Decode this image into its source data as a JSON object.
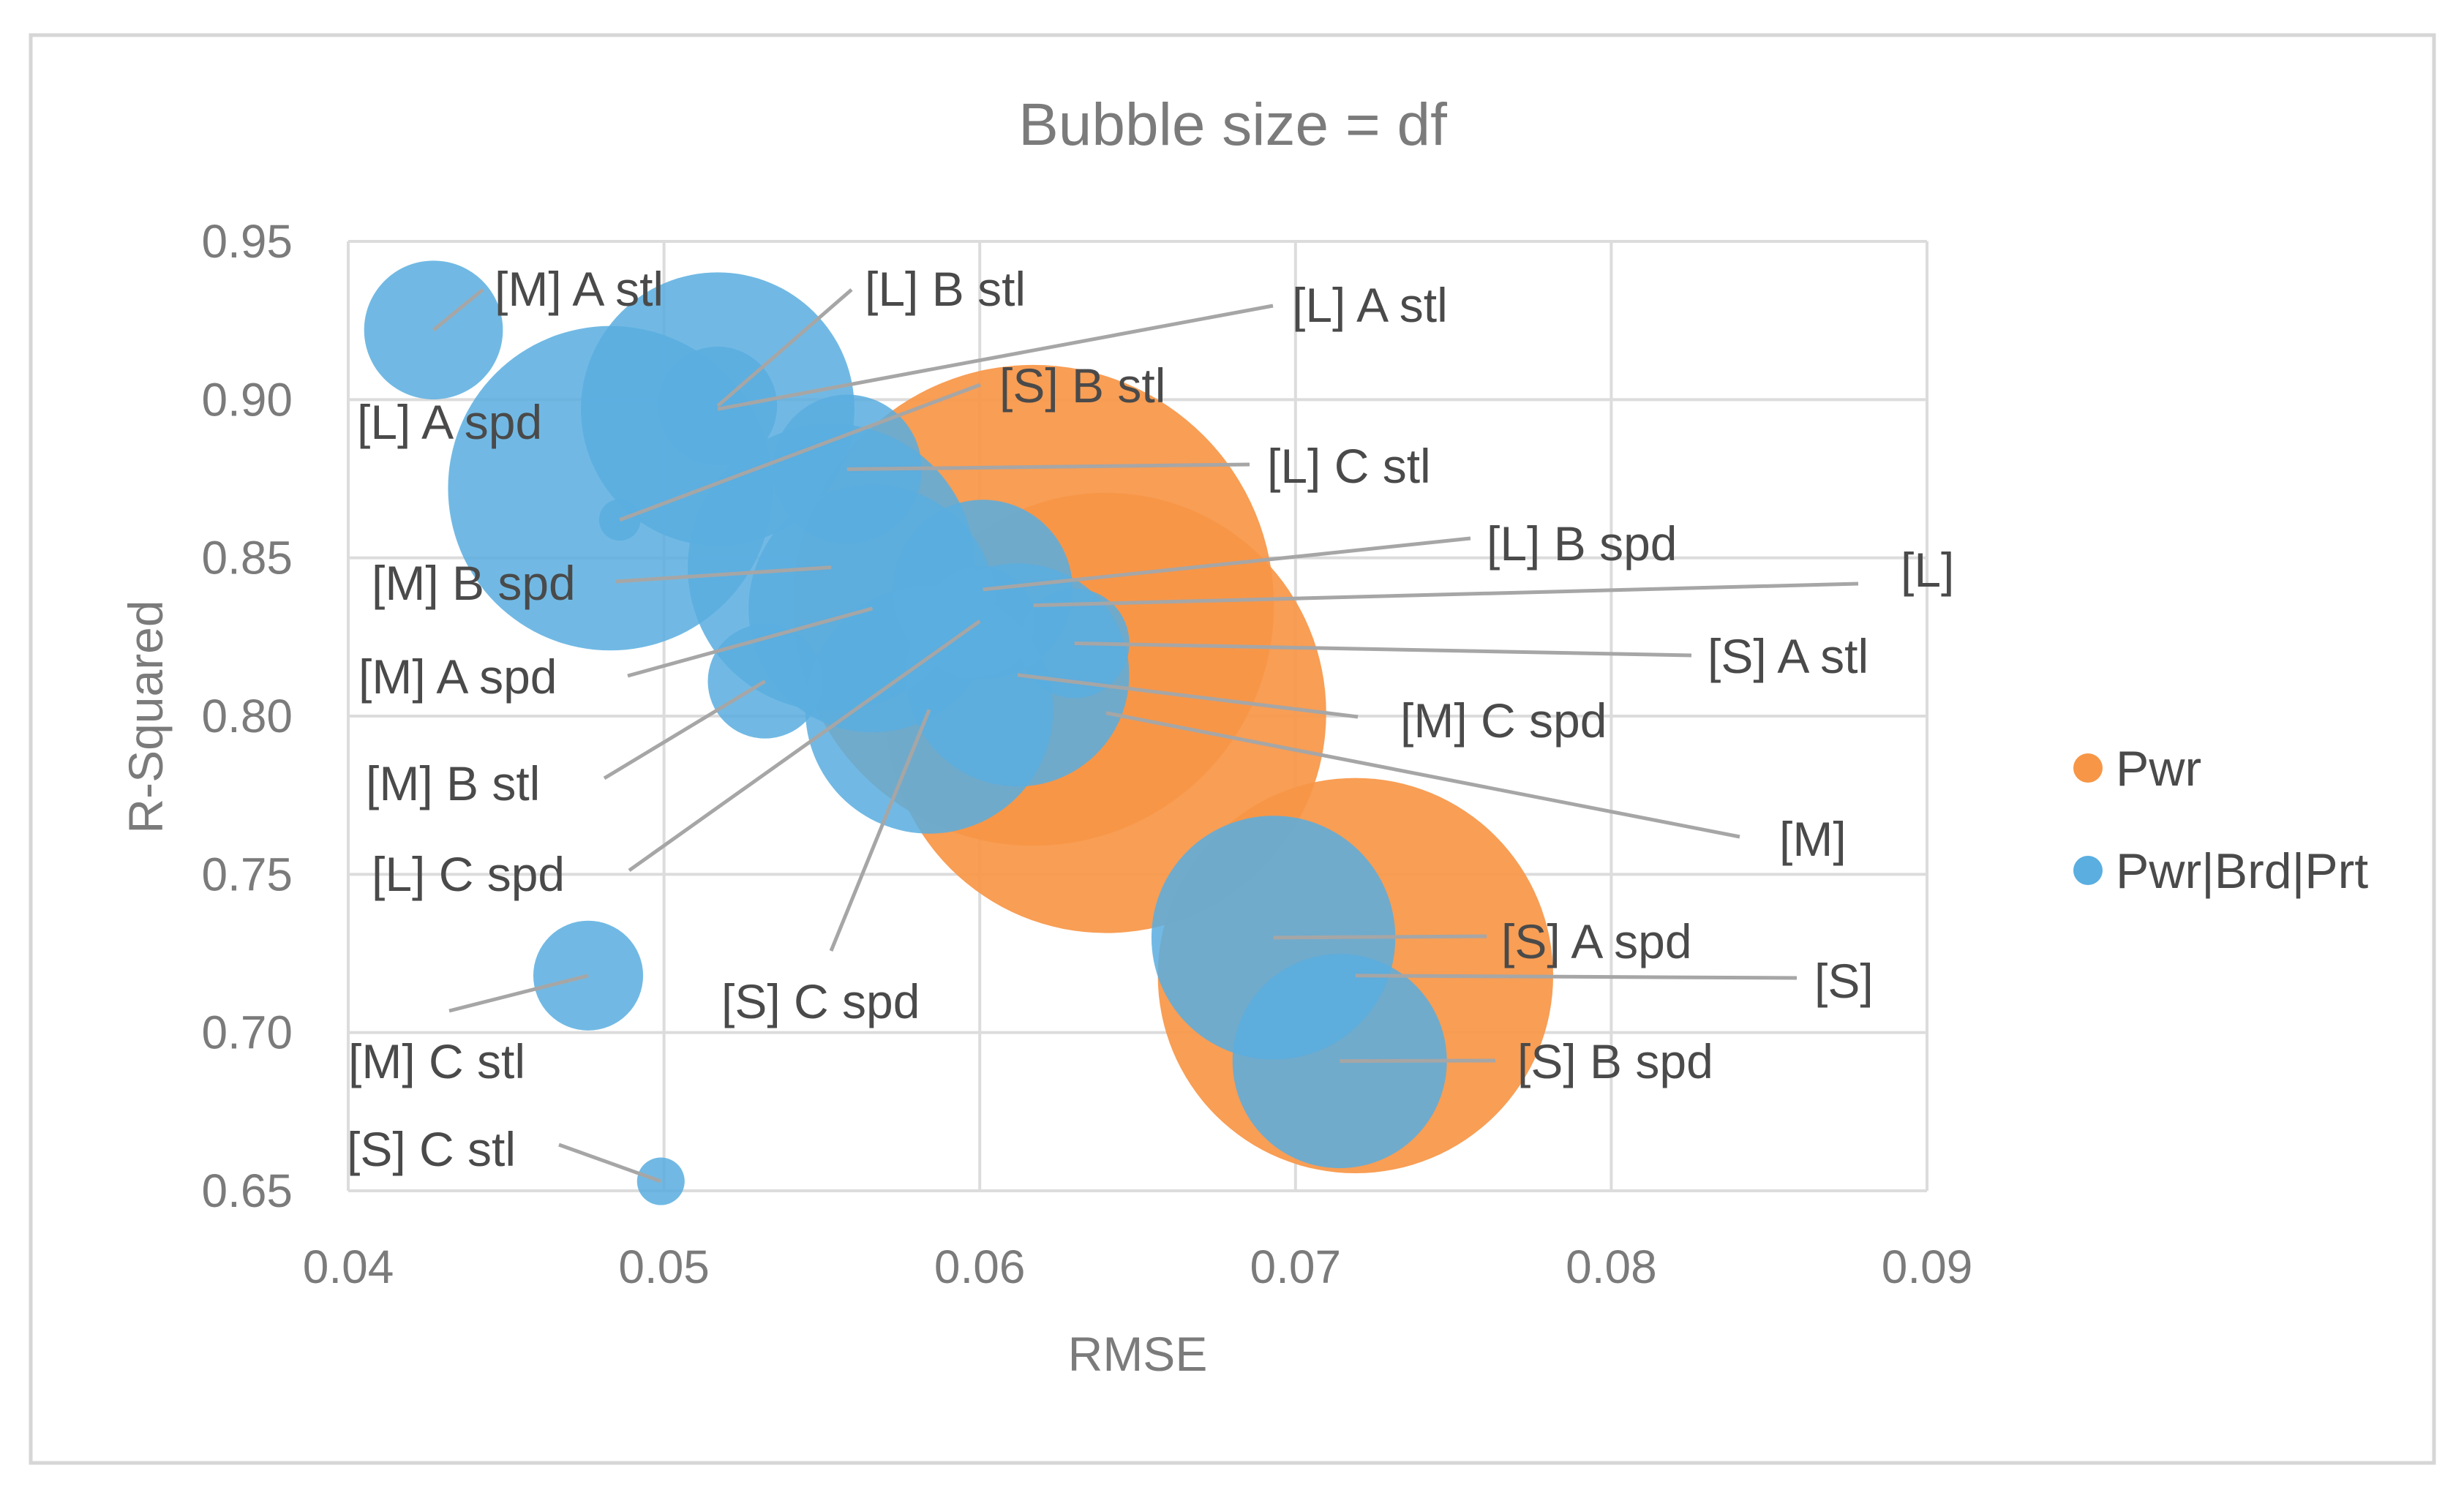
{
  "chart_data": {
    "type": "bubble",
    "title": "Bubble size = df",
    "xlabel": "RMSE",
    "ylabel": "R-Squared",
    "xlim": [
      0.04,
      0.09
    ],
    "ylim": [
      0.65,
      0.95
    ],
    "x_ticks": [
      "0.04",
      "0.05",
      "0.06",
      "0.07",
      "0.08",
      "0.09"
    ],
    "y_ticks": [
      "0.65",
      "0.70",
      "0.75",
      "0.80",
      "0.85",
      "0.90",
      "0.95"
    ],
    "gridlines": true,
    "legend_position": "right",
    "series": [
      {
        "name": "Pwr",
        "color": "#f79646",
        "points": [
          {
            "label": "[L]",
            "x": 0.0617,
            "y": 0.835,
            "size": 12
          },
          {
            "label": "[M]",
            "x": 0.064,
            "y": 0.801,
            "size": 10
          },
          {
            "label": "[S]",
            "x": 0.0719,
            "y": 0.718,
            "size": 8
          }
        ]
      },
      {
        "name": "Pwr|Brd|Prt",
        "color": "#5aaee0",
        "points": [
          {
            "label": "[M]  A stl",
            "x": 0.0427,
            "y": 0.922,
            "size": 0.85
          },
          {
            "label": "[L]  B stl",
            "x": 0.0517,
            "y": 0.898,
            "size": 0.6
          },
          {
            "label": "[L]  A stl",
            "x": 0.0517,
            "y": 0.897,
            "size": 3.7
          },
          {
            "label": "[S]  B stl",
            "x": 0.0486,
            "y": 0.862,
            "size": 0.04
          },
          {
            "label": "[L]  A spd",
            "x": 0.0483,
            "y": 0.872,
            "size": 5.3
          },
          {
            "label": "[L]  C stl",
            "x": 0.0558,
            "y": 0.878,
            "size": 1.0
          },
          {
            "label": "[M]  B spd",
            "x": 0.0553,
            "y": 0.847,
            "size": 4.1
          },
          {
            "label": "[M]  A spd",
            "x": 0.0566,
            "y": 0.834,
            "size": 3.0
          },
          {
            "label": "[L]  B spd",
            "x": 0.0601,
            "y": 0.84,
            "size": 1.5
          },
          {
            "label": "[L]  C spd",
            "x": 0.06,
            "y": 0.83,
            "size": 0.5
          },
          {
            "label": "[S]  A stl",
            "x": 0.063,
            "y": 0.823,
            "size": 0.5
          },
          {
            "label": "[M]  C spd",
            "x": 0.0612,
            "y": 0.813,
            "size": 2.4
          },
          {
            "label": "[M]  B stl",
            "x": 0.0532,
            "y": 0.811,
            "size": 0.55
          },
          {
            "label": "[S]  C spd",
            "x": 0.0584,
            "y": 0.802,
            "size": 3.0
          },
          {
            "label": "[S]  A spd",
            "x": 0.0693,
            "y": 0.73,
            "size": 2.9
          },
          {
            "label": "[S]  B spd",
            "x": 0.0714,
            "y": 0.691,
            "size": 2.2
          },
          {
            "label": "[M]  C stl",
            "x": 0.0476,
            "y": 0.718,
            "size": 0.5
          },
          {
            "label": "[S]  C stl",
            "x": 0.0499,
            "y": 0.653,
            "size": 0.06
          }
        ]
      }
    ]
  }
}
